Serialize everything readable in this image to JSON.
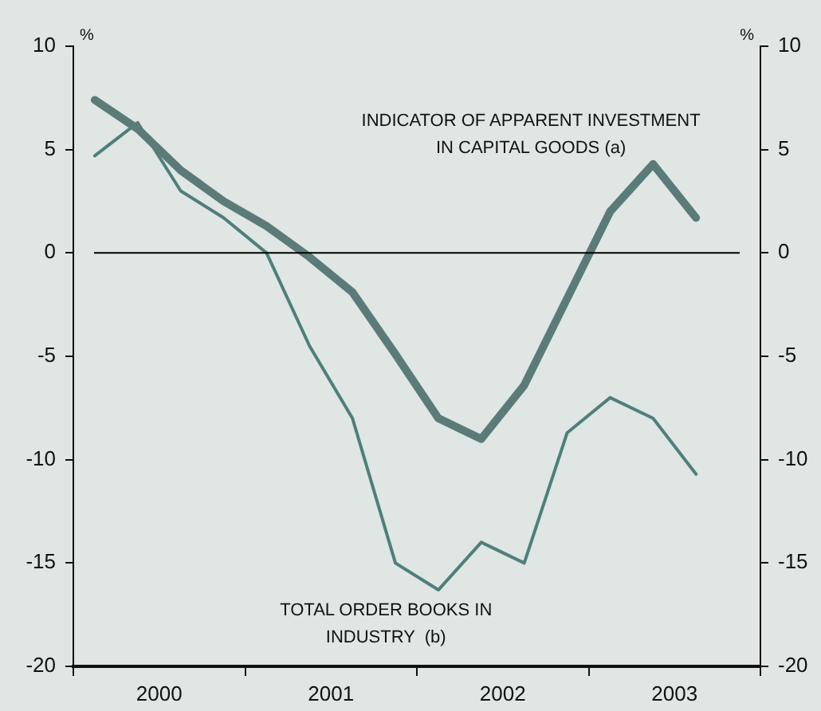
{
  "chart_data": {
    "type": "line",
    "x": [
      2000.125,
      2000.375,
      2000.625,
      2000.875,
      2001.125,
      2001.375,
      2001.625,
      2001.875,
      2002.125,
      2002.375,
      2002.625,
      2002.875,
      2003.125,
      2003.375,
      2003.625
    ],
    "series": [
      {
        "color": "#5b7b78",
        "values": [
          7.4,
          6.0,
          4.0,
          2.5,
          1.3,
          -0.2,
          -1.9,
          -4.9,
          -8.0,
          -9.0,
          -6.4,
          -2.2,
          2.0,
          4.3,
          1.7
        ]
      },
      {
        "color": "#4f7f7a",
        "values": [
          4.7,
          6.3,
          3.0,
          1.7,
          0,
          -4.5,
          -8.0,
          -15.0,
          -16.3,
          -14.0,
          -15.0,
          -8.7,
          -7.0,
          -8.0,
          -10.7
        ]
      }
    ],
    "xlim": [
      2000,
      2004
    ],
    "xticks": [
      {
        "value": 2000,
        "label": null
      },
      {
        "value": 2000.5,
        "label": "2000"
      },
      {
        "value": 2001,
        "label": null
      },
      {
        "value": 2001.5,
        "label": "2001"
      },
      {
        "value": 2002,
        "label": null
      },
      {
        "value": 2002.5,
        "label": "2002"
      },
      {
        "value": 2003,
        "label": null
      },
      {
        "value": 2003.5,
        "label": "2003"
      },
      {
        "value": 2004,
        "label": null
      }
    ],
    "ylim": [
      -20,
      10
    ],
    "yticks": [
      -20,
      -15,
      -10,
      -5,
      0,
      5,
      10
    ],
    "y2lim": [
      -20,
      10
    ],
    "y2ticks": [
      -20,
      -15,
      -10,
      -5,
      0,
      5,
      10
    ],
    "ylabel": "%",
    "y2label": "%",
    "ref_lines": [
      {
        "axis": "y",
        "value": 0,
        "color": "#000000"
      }
    ],
    "annotations": [
      "INDICATOR OF APPARENT INVESTMENT\nIN CAPITAL GOODS (a)",
      "TOTAL ORDER BOOKS IN\nINDUSTRY  (b)"
    ],
    "grid": false,
    "legend": false,
    "marker": "none",
    "line_style": "solid"
  }
}
